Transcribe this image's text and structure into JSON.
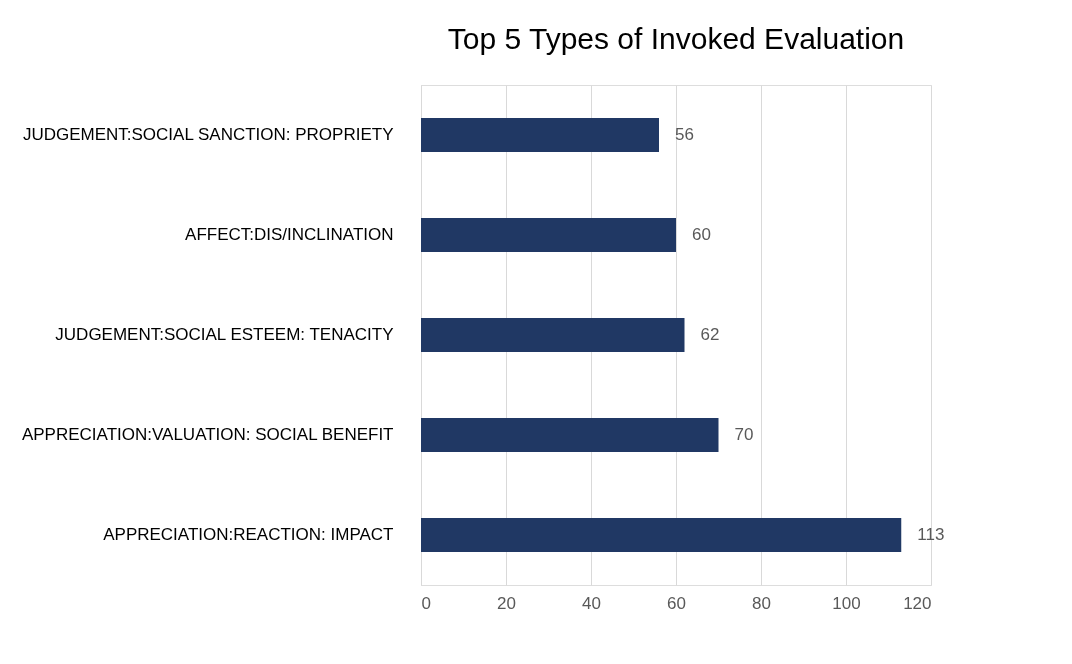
{
  "chart_data": {
    "type": "bar",
    "orientation": "horizontal",
    "title": "Top 5 Types of Invoked Evaluation",
    "categories": [
      "JUDGEMENT:SOCIAL SANCTION: PROPRIETY",
      "AFFECT:DIS/INCLINATION",
      "JUDGEMENT:SOCIAL ESTEEM: TENACITY",
      "APPRECIATION:VALUATION: SOCIAL BENEFIT",
      "APPRECIATION:REACTION: IMPACT"
    ],
    "values": [
      56,
      60,
      62,
      70,
      113
    ],
    "color": "#203864",
    "xlim": [
      0,
      120
    ],
    "xticks": [
      0,
      20,
      40,
      60,
      80,
      100,
      120
    ],
    "grid": "x",
    "data_labels": true
  }
}
